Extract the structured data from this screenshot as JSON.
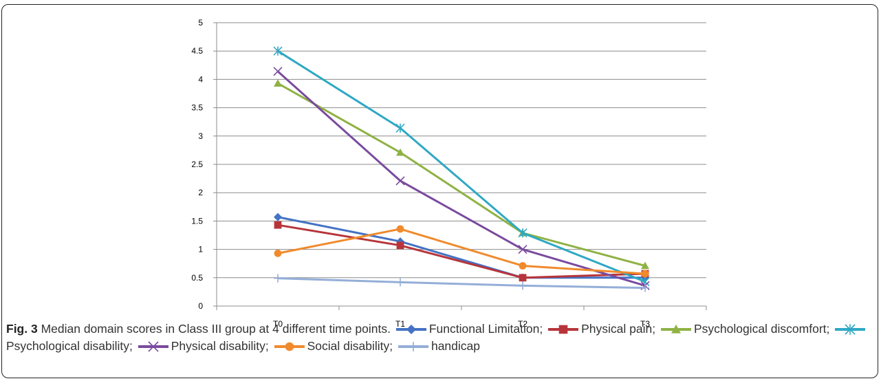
{
  "chart_data": {
    "type": "line",
    "categories": [
      "T0",
      "T1",
      "T2",
      "T3"
    ],
    "yticks": [
      "0",
      "0.5",
      "1",
      "1.5",
      "2",
      "2.5",
      "3",
      "3.5",
      "4",
      "4.5",
      "5"
    ],
    "ylim": [
      0,
      5
    ],
    "grid": true,
    "series": [
      {
        "name": "Functional Limitation",
        "color": "#4472c4",
        "marker": "diamond",
        "values": [
          1.57,
          1.14,
          0.5,
          0.5
        ]
      },
      {
        "name": "Physical pain",
        "color": "#b7353a",
        "marker": "square",
        "values": [
          1.43,
          1.07,
          0.5,
          0.57
        ]
      },
      {
        "name": "Psychological discomfort",
        "color": "#8fb244",
        "marker": "triangle",
        "values": [
          3.93,
          2.71,
          1.29,
          0.71
        ]
      },
      {
        "name": "Psychological disability",
        "color": "#2fa8c4",
        "marker": "asterisk",
        "values": [
          4.5,
          3.14,
          1.29,
          0.43
        ]
      },
      {
        "name": "Physical disability",
        "color": "#7a4a9e",
        "marker": "x",
        "values": [
          4.14,
          2.21,
          1.0,
          0.36
        ]
      },
      {
        "name": "Social disability",
        "color": "#f08a2c",
        "marker": "circle",
        "values": [
          0.93,
          1.36,
          0.71,
          0.57
        ]
      },
      {
        "name": "handicap",
        "color": "#94aed8",
        "marker": "plus",
        "values": [
          0.49,
          0.42,
          0.36,
          0.32
        ]
      }
    ]
  },
  "caption": {
    "fig_label": "Fig. 3",
    "text": " Median domain scores in Class III group at 4 different time points. ",
    "sep": ";",
    "legend_names": [
      "Functional Limitation",
      "Physical pain",
      "Psychological discomfort",
      "Psychological disability",
      "Physical disability",
      "Social disability",
      "handicap"
    ]
  }
}
